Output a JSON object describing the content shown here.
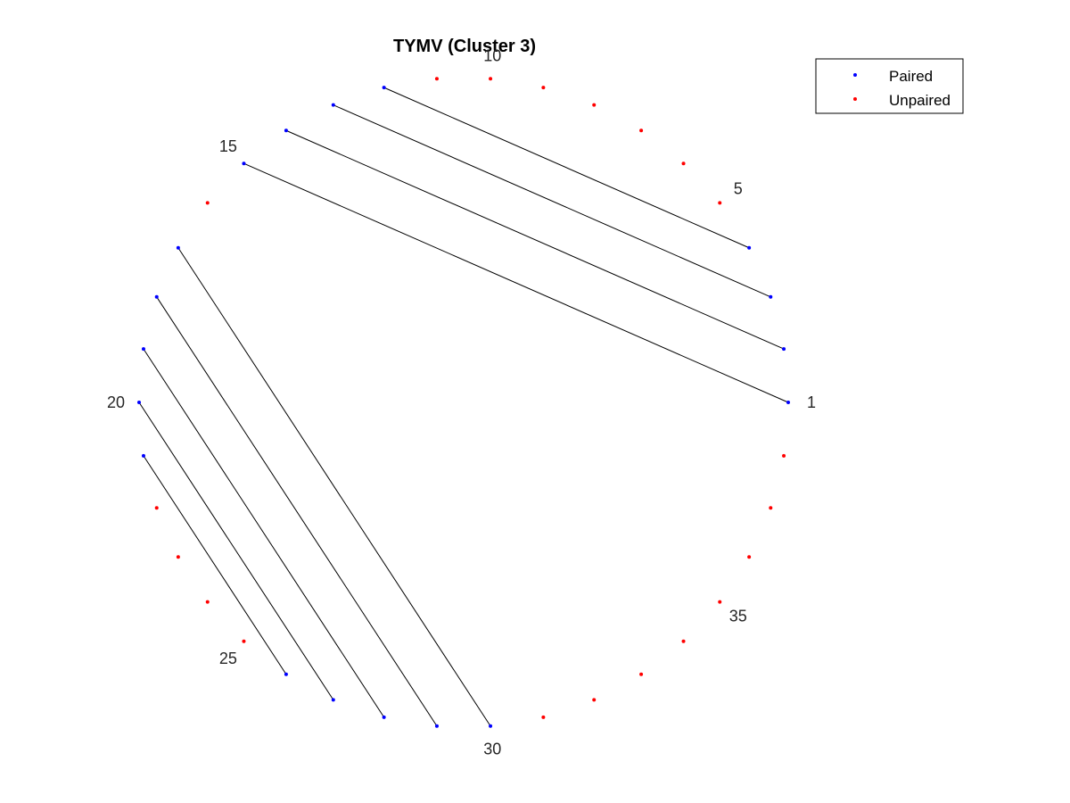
{
  "chart_data": {
    "type": "scatter",
    "title": "TYMV (Cluster 3)",
    "layout": "circular",
    "n_positions": 38,
    "position_labels": [
      1,
      5,
      10,
      15,
      20,
      25,
      30,
      35
    ],
    "series": [
      {
        "name": "Paired",
        "color": "#0000ff",
        "positions": [
          1,
          2,
          3,
          4,
          12,
          13,
          14,
          15,
          17,
          18,
          19,
          20,
          21,
          26,
          27,
          28,
          29,
          30
        ]
      },
      {
        "name": "Unpaired",
        "color": "#ff0000",
        "positions": [
          5,
          6,
          7,
          8,
          9,
          10,
          11,
          16,
          22,
          23,
          24,
          25,
          31,
          32,
          33,
          34,
          35,
          36,
          37,
          38
        ]
      }
    ],
    "pairs": [
      [
        1,
        15
      ],
      [
        2,
        14
      ],
      [
        3,
        13
      ],
      [
        4,
        12
      ],
      [
        17,
        30
      ],
      [
        18,
        29
      ],
      [
        19,
        28
      ],
      [
        20,
        27
      ],
      [
        21,
        26
      ]
    ],
    "pair_line_color": "#000000",
    "legend_placement": "top-right",
    "grid": false,
    "axes_visible": false
  }
}
